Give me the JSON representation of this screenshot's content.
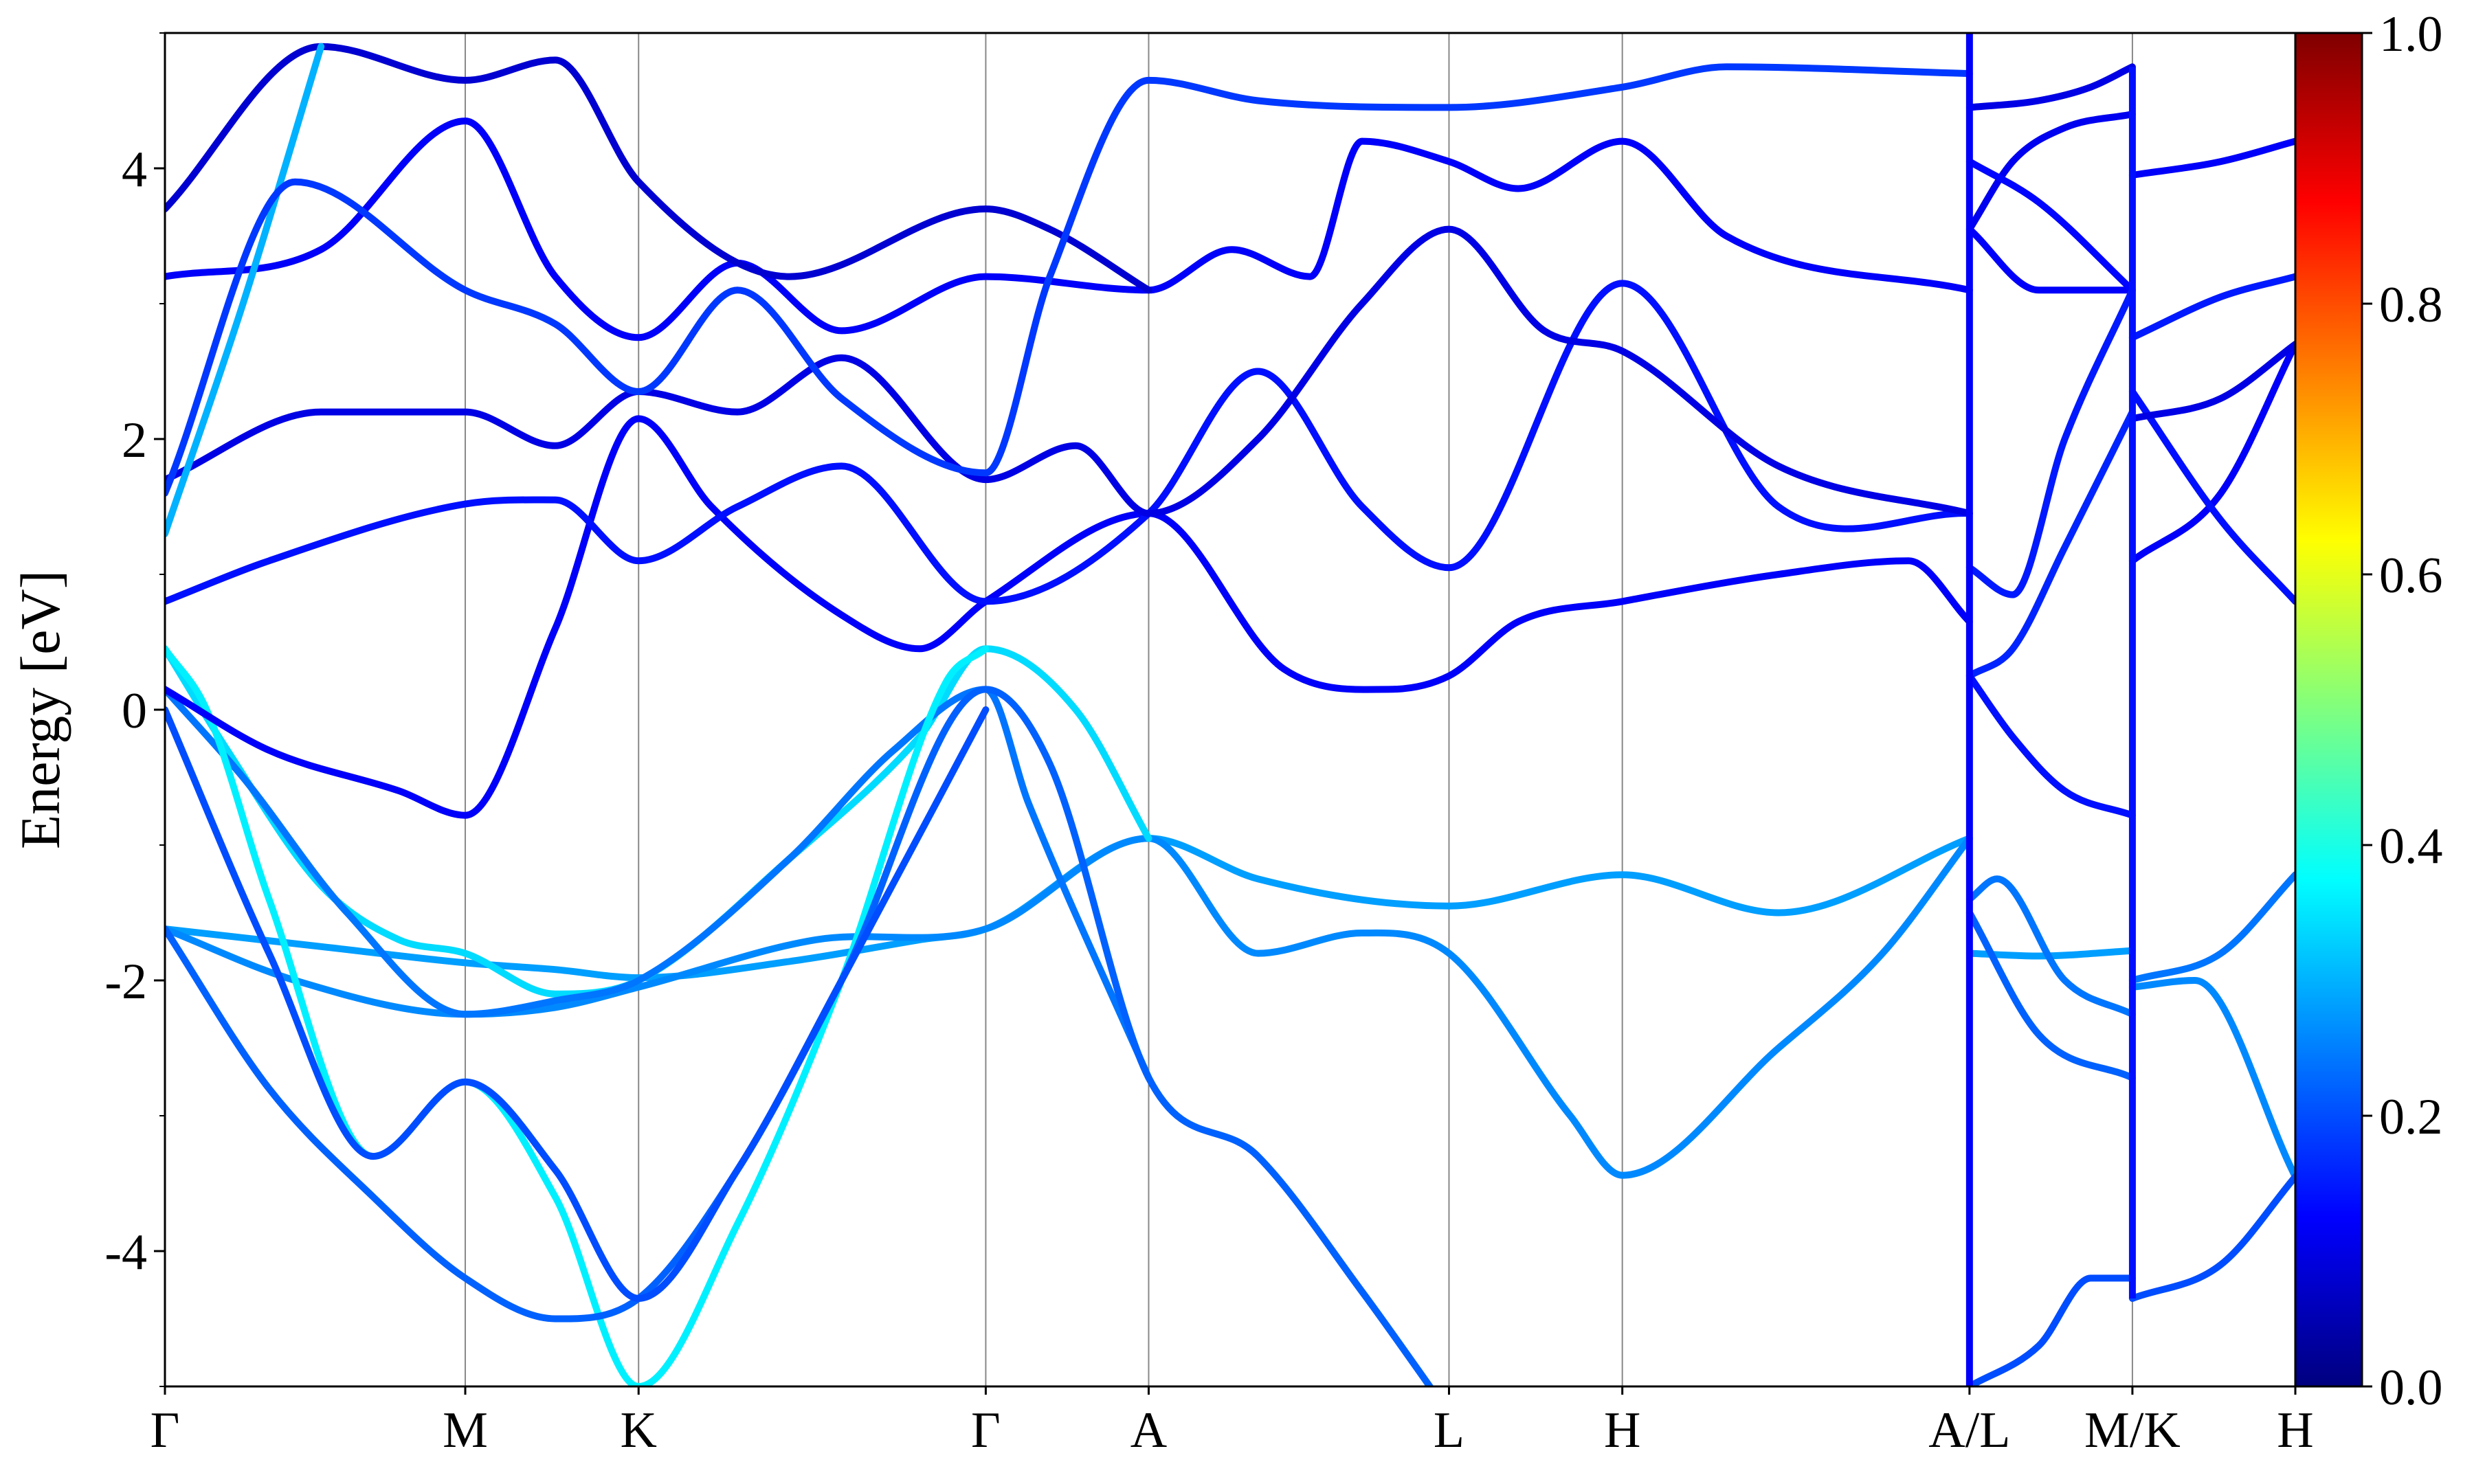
{
  "chart_data": {
    "type": "line",
    "title": "",
    "xlabel": "",
    "ylabel": "Energy [eV]",
    "ylim": [
      -5,
      5
    ],
    "y_ticks": [
      -4,
      -2,
      0,
      2,
      4
    ],
    "y_minor_step": 1,
    "high_symmetry_points": [
      {
        "label": "Γ",
        "k": 0.0
      },
      {
        "label": "M",
        "k": 0.577
      },
      {
        "label": "K",
        "k": 0.91
      },
      {
        "label": "Γ",
        "k": 1.577
      },
      {
        "label": "A",
        "k": 1.89
      },
      {
        "label": "L",
        "k": 2.467
      },
      {
        "label": "H",
        "k": 2.8
      },
      {
        "label": "A/L",
        "k": 3.467
      },
      {
        "label": "M/K",
        "k": 3.78
      },
      {
        "label": "H",
        "k": 4.093
      }
    ],
    "grid": "vertical lines at high-symmetry points",
    "colormap": "jet",
    "colorbar": {
      "range": [
        0,
        1
      ],
      "ticks": [
        "0.0",
        "0.2",
        "0.4",
        "0.6",
        "0.8",
        "1.0"
      ],
      "stops": [
        "#00007f",
        "#0000ff",
        "#007fff",
        "#00ffff",
        "#7fff7f",
        "#ffff00",
        "#ff7f00",
        "#ff0000",
        "#7f0000"
      ]
    },
    "series": [
      {
        "c": 0.28,
        "x": [
          0,
          0.3,
          0.577,
          0.75,
          0.91,
          1.2,
          1.45,
          1.577,
          1.89,
          2.1,
          2.467,
          2.8,
          3.1,
          3.467
        ],
        "y": [
          -1.62,
          -1.75,
          -1.87,
          -1.92,
          -1.98,
          -1.86,
          -1.7,
          -1.62,
          -0.95,
          -1.25,
          -1.45,
          -1.22,
          -1.5,
          -0.95
        ]
      },
      {
        "c": 0.26,
        "x": [
          0,
          0.25,
          0.577,
          0.75,
          0.91,
          1.25,
          1.577,
          1.89,
          2.1,
          2.3,
          2.467,
          2.7,
          2.8,
          3.1,
          3.3,
          3.467
        ],
        "y": [
          -1.62,
          -2.0,
          -2.25,
          -2.2,
          -2.05,
          -1.7,
          -1.62,
          -0.95,
          -1.8,
          -1.65,
          -1.8,
          -3.0,
          -3.44,
          -2.5,
          -1.8,
          -0.95
        ]
      },
      {
        "c": 0.34,
        "x": [
          0,
          0.12,
          0.3,
          0.45,
          0.577,
          0.75,
          0.91,
          1.2,
          1.45,
          1.577,
          1.75,
          1.89
        ],
        "y": [
          0.45,
          -0.3,
          -1.3,
          -1.7,
          -1.8,
          -2.1,
          -2.0,
          -1.1,
          -0.2,
          0.45,
          0.0,
          -0.95
        ]
      },
      {
        "c": 0.24,
        "x": [
          0,
          0.15,
          0.35,
          0.577,
          0.75,
          0.91,
          1.2,
          1.4,
          1.577,
          1.66,
          1.89
        ],
        "y": [
          0.15,
          -0.5,
          -1.5,
          -2.25,
          -2.15,
          -2.0,
          -1.1,
          -0.3,
          0.15,
          -0.7,
          -2.72
        ]
      },
      {
        "c": 0.36,
        "x": [
          0,
          0.08,
          0.2,
          0.4,
          0.577,
          0.75,
          0.91,
          1.1,
          1.3,
          1.5,
          1.577
        ],
        "y": [
          0.45,
          0.0,
          -1.4,
          -3.3,
          -2.75,
          -3.6,
          -5.0,
          -3.8,
          -2.0,
          0.2,
          0.45
        ]
      },
      {
        "c": 0.22,
        "x": [
          0,
          0.2,
          0.4,
          0.577,
          0.75,
          0.91,
          1.1,
          1.3,
          1.577,
          1.7,
          1.89,
          2.1,
          2.3,
          2.467
        ],
        "y": [
          -1.62,
          -2.8,
          -3.6,
          -4.2,
          -4.5,
          -4.35,
          -3.4,
          -2.0,
          0.15,
          -0.4,
          -2.72,
          -3.3,
          -4.3,
          -5.2
        ]
      },
      {
        "c": 0.2,
        "x": [
          0,
          0.2,
          0.4,
          0.577,
          0.75,
          0.91,
          1.1,
          1.3,
          1.577
        ],
        "y": [
          0.0,
          -1.8,
          -3.3,
          -2.75,
          -3.4,
          -4.35,
          -3.4,
          -2.0,
          0.0
        ]
      },
      {
        "c": 0.12,
        "x": [
          0,
          0.2,
          0.45,
          0.577,
          0.75,
          0.91,
          1.05,
          1.3,
          1.45,
          1.577,
          1.89,
          2.15,
          2.35,
          2.467,
          2.6,
          2.8,
          3.1,
          3.35,
          3.467
        ],
        "y": [
          0.15,
          -0.3,
          -0.6,
          -0.78,
          0.6,
          2.15,
          1.5,
          0.7,
          0.45,
          0.8,
          1.45,
          0.3,
          0.15,
          0.25,
          0.65,
          0.8,
          1.0,
          1.1,
          0.65
        ]
      },
      {
        "c": 0.14,
        "x": [
          0,
          0.2,
          0.577,
          0.75,
          0.91,
          1.1,
          1.3,
          1.577,
          1.89,
          2.1,
          2.3,
          2.467,
          2.8,
          3.1,
          3.467
        ],
        "y": [
          0.8,
          1.1,
          1.52,
          1.55,
          1.1,
          1.5,
          1.8,
          0.8,
          1.45,
          2.5,
          1.5,
          1.05,
          3.15,
          1.5,
          1.45
        ]
      },
      {
        "c": 0.1,
        "x": [
          0,
          0.3,
          0.577,
          0.75,
          0.91,
          1.1,
          1.3,
          1.577,
          1.75,
          1.89,
          2.1,
          2.3,
          2.467,
          2.65,
          2.8,
          3.1,
          3.467
        ],
        "y": [
          1.7,
          2.2,
          2.2,
          1.95,
          2.35,
          2.2,
          2.6,
          1.7,
          1.95,
          1.45,
          2.0,
          3.0,
          3.55,
          2.8,
          2.65,
          1.8,
          1.45
        ]
      },
      {
        "c": 0.12,
        "x": [
          0,
          0.3,
          0.577,
          0.75,
          0.91,
          1.1,
          1.3,
          1.577,
          1.89,
          2.05,
          2.2,
          2.3,
          2.467,
          2.6,
          2.8,
          3.0,
          3.467
        ],
        "y": [
          3.2,
          3.4,
          4.35,
          3.2,
          2.75,
          3.3,
          2.8,
          3.2,
          3.1,
          3.4,
          3.2,
          4.2,
          4.05,
          3.85,
          4.2,
          3.5,
          3.1
        ]
      },
      {
        "c": 0.08,
        "x": [
          0,
          0.3,
          0.577,
          0.75,
          0.91,
          1.2,
          1.577,
          1.7,
          1.89
        ],
        "y": [
          3.7,
          4.9,
          4.65,
          4.8,
          3.9,
          3.2,
          3.7,
          3.55,
          3.1
        ]
      },
      {
        "c": 0.3,
        "x": [
          0,
          0.15,
          0.3
        ],
        "y": [
          1.3,
          3.0,
          4.9
        ]
      },
      {
        "c": 0.18,
        "x": [
          0,
          0.25,
          0.577,
          0.75,
          0.91,
          1.1,
          1.3,
          1.577,
          1.7,
          1.89,
          2.1,
          2.467,
          2.8,
          3.0,
          3.467
        ],
        "y": [
          1.6,
          3.9,
          3.1,
          2.85,
          2.35,
          3.1,
          2.3,
          1.75,
          3.2,
          4.65,
          4.5,
          4.45,
          4.6,
          4.75,
          4.7
        ]
      },
      {
        "c": 0.11,
        "x": [
          3.467,
          3.55,
          3.65,
          3.78
        ],
        "y": [
          3.55,
          4.05,
          4.3,
          4.4
        ]
      },
      {
        "c": 0.1,
        "x": [
          3.467,
          3.6,
          3.7,
          3.78
        ],
        "y": [
          4.45,
          4.5,
          4.6,
          4.75
        ]
      },
      {
        "c": 0.12,
        "x": [
          3.467,
          3.6,
          3.78
        ],
        "y": [
          3.55,
          3.1,
          3.1
        ]
      },
      {
        "c": 0.13,
        "x": [
          3.467,
          3.6,
          3.78
        ],
        "y": [
          4.05,
          3.75,
          3.1
        ]
      },
      {
        "c": 0.15,
        "x": [
          3.467,
          3.55,
          3.65,
          3.78
        ],
        "y": [
          1.05,
          0.85,
          2.0,
          3.1
        ]
      },
      {
        "c": 0.16,
        "x": [
          3.467,
          3.55,
          3.65,
          3.78
        ],
        "y": [
          0.25,
          0.45,
          1.2,
          2.2
        ]
      },
      {
        "c": 0.14,
        "x": [
          3.467,
          3.55,
          3.65,
          3.78
        ],
        "y": [
          0.25,
          -0.2,
          -0.6,
          -0.78
        ]
      },
      {
        "c": 0.28,
        "x": [
          3.467,
          3.6,
          3.78
        ],
        "y": [
          -1.8,
          -1.82,
          -1.78
        ]
      },
      {
        "c": 0.24,
        "x": [
          3.467,
          3.52,
          3.65,
          3.78
        ],
        "y": [
          -1.4,
          -1.25,
          -2.0,
          -2.25
        ]
      },
      {
        "c": 0.22,
        "x": [
          3.467,
          3.6,
          3.78
        ],
        "y": [
          -1.5,
          -2.4,
          -2.72
        ]
      },
      {
        "c": 0.2,
        "x": [
          3.467,
          3.6,
          3.7,
          3.78
        ],
        "y": [
          -5.0,
          -4.7,
          -4.2,
          -4.2
        ]
      },
      {
        "c": 0.26,
        "x": [
          3.78,
          3.9,
          4.093
        ],
        "y": [
          -2.05,
          -2.0,
          -3.45
        ]
      },
      {
        "c": 0.24,
        "x": [
          3.78,
          3.95,
          4.093
        ],
        "y": [
          -2.0,
          -1.8,
          -1.22
        ]
      },
      {
        "c": 0.2,
        "x": [
          3.78,
          3.95,
          4.093
        ],
        "y": [
          -4.35,
          -4.1,
          -3.45
        ]
      },
      {
        "c": 0.12,
        "x": [
          3.78,
          3.95,
          4.093
        ],
        "y": [
          1.1,
          1.6,
          2.7
        ]
      },
      {
        "c": 0.14,
        "x": [
          3.78,
          3.95,
          4.093
        ],
        "y": [
          2.35,
          1.4,
          0.8
        ]
      },
      {
        "c": 0.1,
        "x": [
          3.78,
          3.95,
          4.093
        ],
        "y": [
          2.15,
          2.3,
          2.7
        ]
      },
      {
        "c": 0.15,
        "x": [
          3.78,
          3.95,
          4.093
        ],
        "y": [
          2.75,
          3.05,
          3.2
        ]
      },
      {
        "c": 0.12,
        "x": [
          3.78,
          3.95,
          4.093
        ],
        "y": [
          3.95,
          4.05,
          4.2
        ]
      }
    ],
    "discontinuities": [
      {
        "k": 3.467,
        "c": 0.12,
        "y": [
          -5.0,
          5.0
        ]
      },
      {
        "k": 3.78,
        "c": 0.14,
        "y": [
          -4.35,
          4.75
        ]
      }
    ]
  }
}
